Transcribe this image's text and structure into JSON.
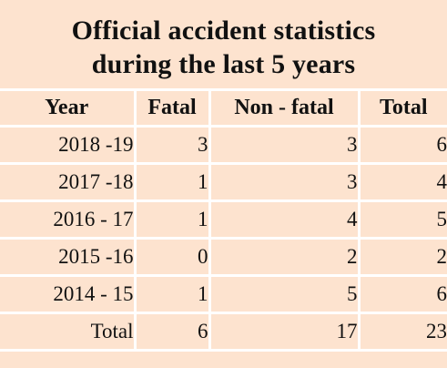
{
  "title": {
    "line1": "Official accident statistics",
    "line2": "during the last 5 years"
  },
  "table": {
    "headers": [
      "Year",
      "Fatal",
      "Non - fatal",
      "Total"
    ],
    "rows": [
      [
        "2018 -19",
        "3",
        "3",
        "6"
      ],
      [
        "2017 -18",
        "1",
        "3",
        "4"
      ],
      [
        "2016 - 17",
        "1",
        "4",
        "5"
      ],
      [
        "2015 -16",
        "0",
        "2",
        "2"
      ],
      [
        "2014 - 15",
        "1",
        "5",
        "6"
      ],
      [
        "Total",
        "6",
        "17",
        "23"
      ]
    ]
  },
  "colors": {
    "background": "#fde3cf",
    "gridlines": "#ffffff",
    "text": "#111111"
  }
}
